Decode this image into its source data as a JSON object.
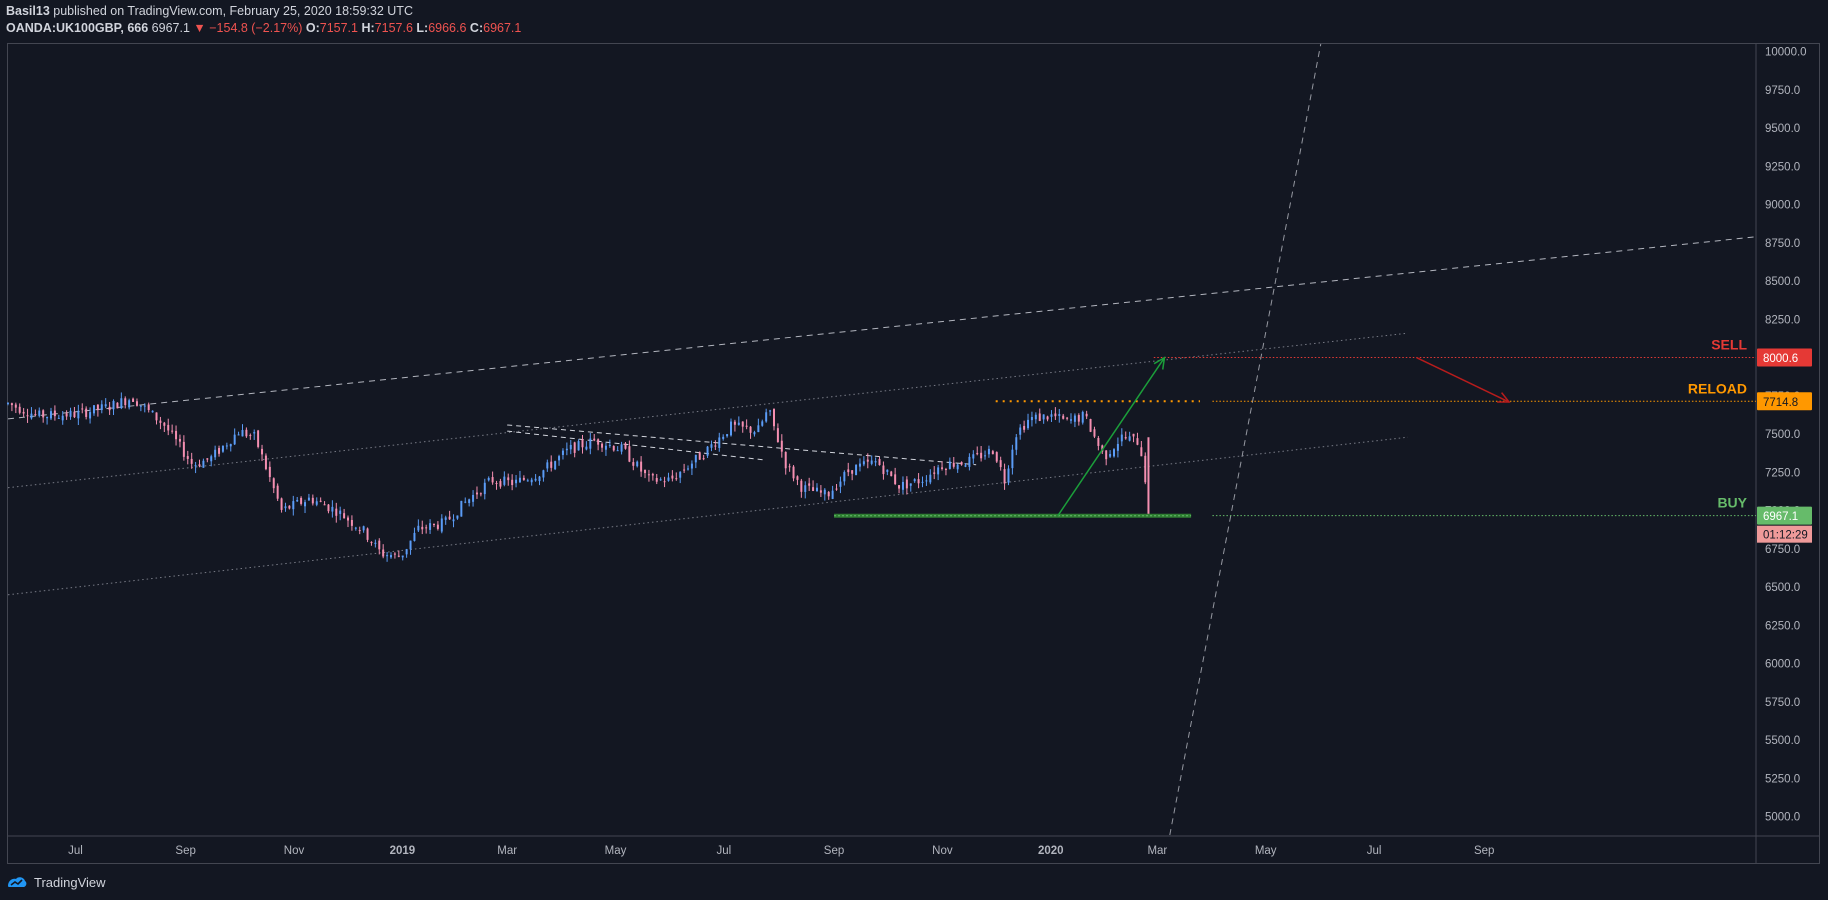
{
  "header": {
    "author": "Basil13",
    "published_text": " published on TradingView.com, February 25, 2020 18:59:32 UTC",
    "symbol": "OANDA:UK100GBP, 666",
    "last": "6967.1",
    "change": "−154.8 (−2.17%)",
    "o_label": "O:",
    "o_value": "7157.1",
    "h_label": "H:",
    "h_value": "7157.6",
    "l_label": "L:",
    "l_value": "6966.6",
    "c_label": "C:",
    "c_value": "6967.1"
  },
  "footer": {
    "brand": "TradingView"
  },
  "colors": {
    "background": "#131722",
    "up": "#5b9cf6",
    "down": "#f48fb1",
    "sell": "#e53935",
    "reload": "#ff9800",
    "buy": "#66bb6a",
    "grid_text": "#b2b5be"
  },
  "chart_data": {
    "type": "candlestick",
    "title": "",
    "xlabel": "",
    "ylabel": "",
    "y_axis_ticks": [
      10000,
      9750,
      9500,
      9250,
      9000,
      8750,
      8500,
      8250,
      8000,
      7750,
      7500,
      7250,
      7000,
      6750,
      6500,
      6250,
      6000,
      5750,
      5500,
      5250,
      5000
    ],
    "y_axis_tick_labels": [
      "10000.0",
      "9750.0",
      "9500.0",
      "9250.0",
      "9000.0",
      "8750.0",
      "8500.0",
      "8250.0",
      "8000.0",
      "7750.0",
      "7500.0",
      "7250.0",
      "7000.0",
      "6750.0",
      "6500.0",
      "6250.0",
      "6000.0",
      "5750.0",
      "5500.0",
      "5250.0",
      "5000.0"
    ],
    "ylim": [
      4880,
      10050
    ],
    "x_axis_labels": [
      {
        "label": "Jul",
        "date": "2018-07-01",
        "bold": false
      },
      {
        "label": "Sep",
        "date": "2018-09-01",
        "bold": false
      },
      {
        "label": "Nov",
        "date": "2018-11-01",
        "bold": false
      },
      {
        "label": "2019",
        "date": "2019-01-01",
        "bold": true
      },
      {
        "label": "Mar",
        "date": "2019-03-01",
        "bold": false
      },
      {
        "label": "May",
        "date": "2019-05-01",
        "bold": false
      },
      {
        "label": "Jul",
        "date": "2019-07-01",
        "bold": false
      },
      {
        "label": "Sep",
        "date": "2019-09-01",
        "bold": false
      },
      {
        "label": "Nov",
        "date": "2019-11-01",
        "bold": false
      },
      {
        "label": "2020",
        "date": "2020-01-01",
        "bold": true
      },
      {
        "label": "Mar",
        "date": "2020-03-01",
        "bold": false
      },
      {
        "label": "May",
        "date": "2020-05-01",
        "bold": false
      },
      {
        "label": "Jul",
        "date": "2020-07-01",
        "bold": false
      },
      {
        "label": "Sep",
        "date": "2020-09-01",
        "bold": false
      }
    ],
    "xlim": [
      "2018-05-24",
      "2021-02-01"
    ],
    "price_path": [
      [
        "2018-05-24",
        7700
      ],
      [
        "2018-06-10",
        7620
      ],
      [
        "2018-07-01",
        7630
      ],
      [
        "2018-07-20",
        7680
      ],
      [
        "2018-08-02",
        7740
      ],
      [
        "2018-08-20",
        7560
      ],
      [
        "2018-09-05",
        7300
      ],
      [
        "2018-09-15",
        7340
      ],
      [
        "2018-10-01",
        7520
      ],
      [
        "2018-10-10",
        7480
      ],
      [
        "2018-10-25",
        7000
      ],
      [
        "2018-11-10",
        7080
      ],
      [
        "2018-11-25",
        7000
      ],
      [
        "2018-12-10",
        6870
      ],
      [
        "2018-12-20",
        6720
      ],
      [
        "2018-12-31",
        6700
      ],
      [
        "2019-01-10",
        6880
      ],
      [
        "2019-01-25",
        6920
      ],
      [
        "2019-02-05",
        7050
      ],
      [
        "2019-02-20",
        7200
      ],
      [
        "2019-03-05",
        7180
      ],
      [
        "2019-03-20",
        7250
      ],
      [
        "2019-04-05",
        7400
      ],
      [
        "2019-04-20",
        7460
      ],
      [
        "2019-05-05",
        7400
      ],
      [
        "2019-05-20",
        7200
      ],
      [
        "2019-06-01",
        7200
      ],
      [
        "2019-06-20",
        7380
      ],
      [
        "2019-07-05",
        7550
      ],
      [
        "2019-07-20",
        7520
      ],
      [
        "2019-07-26",
        7660
      ],
      [
        "2019-08-05",
        7300
      ],
      [
        "2019-08-14",
        7150
      ],
      [
        "2019-08-28",
        7100
      ],
      [
        "2019-09-10",
        7270
      ],
      [
        "2019-09-25",
        7320
      ],
      [
        "2019-10-08",
        7160
      ],
      [
        "2019-10-20",
        7200
      ],
      [
        "2019-11-01",
        7300
      ],
      [
        "2019-11-15",
        7320
      ],
      [
        "2019-11-30",
        7400
      ],
      [
        "2019-12-06",
        7200
      ],
      [
        "2019-12-12",
        7500
      ],
      [
        "2019-12-20",
        7600
      ],
      [
        "2020-01-02",
        7620
      ],
      [
        "2020-01-10",
        7580
      ],
      [
        "2020-01-20",
        7620
      ],
      [
        "2020-01-31",
        7350
      ],
      [
        "2020-02-10",
        7480
      ],
      [
        "2020-02-20",
        7450
      ],
      [
        "2020-02-24",
        7150
      ],
      [
        "2020-02-25",
        6967
      ]
    ],
    "series": [
      {
        "name": "OANDA:UK100GBP",
        "last_price": 6967.1,
        "countdown": "01:12:29"
      }
    ],
    "levels": [
      {
        "name": "SELL",
        "price": 8000.6,
        "label": "8000.6",
        "style": "dotted",
        "start": "2020-02-28",
        "color_key": "sell"
      },
      {
        "name": "RELOAD",
        "price": 7714.8,
        "label": "7714.8",
        "style": "dotted",
        "start": "2020-04-01",
        "color_key": "reload"
      },
      {
        "name": "BUY",
        "price": 6967.1,
        "label": "6967.1",
        "style": "dotted",
        "start": "2020-04-01",
        "color_key": "buy"
      }
    ],
    "annotations": {
      "channel_upper_dashed": [
        [
          "2018-05-24",
          7600
        ],
        [
          "2021-02-01",
          8790
        ]
      ],
      "channel_mid_dotted": [
        [
          "2018-05-24",
          7150
        ],
        [
          "2020-07-20",
          8160
        ]
      ],
      "channel_low_dotted": [
        [
          "2018-05-24",
          6450
        ],
        [
          "2020-07-20",
          7480
        ]
      ],
      "steep_dashed": [
        [
          "2020-03-08",
          4880
        ],
        [
          "2020-06-01",
          10050
        ]
      ],
      "wedge_dashed_1": [
        [
          "2019-03-01",
          7560
        ],
        [
          "2019-11-20",
          7300
        ]
      ],
      "wedge_dashed_2": [
        [
          "2019-03-01",
          7520
        ],
        [
          "2019-07-25",
          7330
        ]
      ],
      "reload_short_dotted": [
        [
          "2019-12-01",
          7715
        ],
        [
          "2020-03-25",
          7715
        ]
      ],
      "buy_green_zone": [
        [
          "2019-09-01",
          6967
        ],
        [
          "2020-03-20",
          6967
        ]
      ],
      "green_arrow": [
        [
          "2020-01-05",
          6967
        ],
        [
          "2020-03-05",
          8000
        ]
      ],
      "red_arrow": [
        [
          "2020-07-25",
          8000
        ],
        [
          "2020-09-15",
          7710
        ]
      ]
    }
  }
}
